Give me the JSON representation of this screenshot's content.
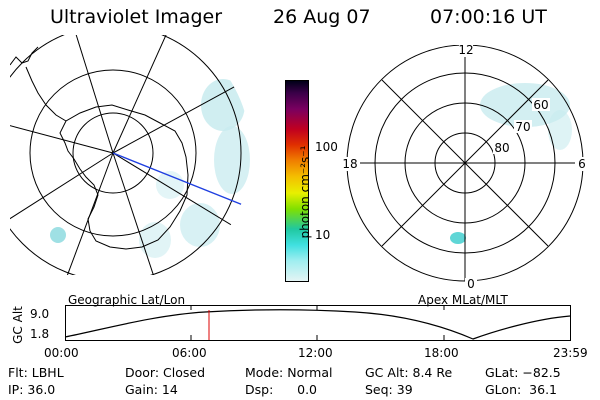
{
  "header": {
    "instrument": "Ultraviolet Imager",
    "date": "26 Aug 07",
    "time": "07:00:16 UT"
  },
  "geo_panel": {
    "label": "Geographic Lat/Lon"
  },
  "apex_panel": {
    "label": "Apex  MLat/MLT",
    "mlt_labels": {
      "top": "12",
      "right": "6",
      "bottom": "0",
      "left": "18"
    },
    "mlat_rings": [
      "60",
      "70",
      "80"
    ]
  },
  "colorbar": {
    "unit_label": "photon cm⁻²s⁻¹",
    "ticks": [
      "100",
      "10"
    ],
    "scale": "log"
  },
  "altitude_plot": {
    "ylabel": "GC Alt",
    "ytick_top": "9.0",
    "ytick_bottom": "1.8",
    "xticks": [
      "00:00",
      "06:00",
      "12:00",
      "18:00",
      "23:59"
    ],
    "marker_time": "07:00",
    "marker_color": "#dd0000"
  },
  "status": {
    "row1": {
      "flt": "Flt: LBHL",
      "door": "Door: Closed",
      "mode": "Mode: Normal",
      "gcalt": "GC Alt: 8.4 Re",
      "glat": "GLat: −82.5"
    },
    "row2": {
      "ip": "IP: 36.0",
      "gain": "Gain: 14",
      "dsp": "Dsp:      0.0",
      "seq": "Seq: 39",
      "glon": "GLon:  36.1"
    }
  },
  "colors": {
    "aurora": "#c8ebef",
    "aurora_bright": "#5fd6d6",
    "meridian_line": "#1f3fe0"
  }
}
